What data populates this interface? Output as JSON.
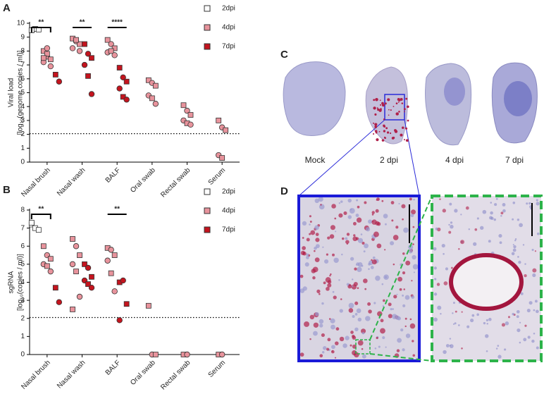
{
  "panel_labels": [
    "A",
    "B",
    "C",
    "D"
  ],
  "images": {
    "labels": [
      "Mock",
      "2 dpi",
      "4 dpi",
      "7 dpi"
    ]
  },
  "chart_data": [
    {
      "type": "dot",
      "categories": [
        "Nasal brush",
        "Nasal wash",
        "BALF",
        "Oral swab",
        "Rectal swab",
        "Serum"
      ],
      "ylabel": [
        "Viral load",
        "[log₁₀(genome copies / ml)]"
      ],
      "ylim": [
        0,
        10
      ],
      "yticks": [
        0,
        1,
        2,
        3,
        4,
        5,
        6,
        7,
        8,
        9,
        10
      ],
      "limit": 2.05,
      "legend": "upper right",
      "significance": [
        "**",
        "**",
        "****",
        null,
        null,
        null
      ],
      "series": [
        {
          "name": "2dpi",
          "color": "#ffffff",
          "values": [
            [
              9.5,
              9.6,
              9.55,
              9.5
            ],
            [],
            [],
            [],
            [],
            []
          ]
        },
        {
          "name": "4dpi",
          "color": "#e8939c",
          "values": [
            [
              8.0,
              7.6,
              7.4,
              7.2,
              7.8,
              6.9,
              7.5,
              8.2
            ],
            [
              8.9,
              8.7,
              8.5,
              8.2,
              8.8,
              8.0
            ],
            [
              8.8,
              8.5,
              8.2,
              7.9,
              8.0,
              7.7
            ],
            [
              5.9,
              5.7,
              5.5,
              4.8,
              4.6,
              4.2
            ],
            [
              4.1,
              3.7,
              3.4,
              3.0,
              2.8,
              2.7
            ],
            [
              3.0,
              2.5,
              2.3,
              0.5,
              0.3
            ]
          ]
        },
        {
          "name": "7dpi",
          "color": "#c4141e",
          "values": [
            [
              6.3,
              5.8
            ],
            [
              8.5,
              7.8,
              7.5,
              7.0,
              6.2,
              4.9
            ],
            [
              6.8,
              6.1,
              5.8,
              5.3,
              4.7,
              4.5
            ],
            [],
            [],
            []
          ]
        }
      ]
    },
    {
      "type": "dot",
      "categories": [
        "Nasal brush",
        "Nasal wash",
        "BALF",
        "Oral swab",
        "Rectal swab",
        "Serum"
      ],
      "ylabel": [
        "sgRNA",
        "[log₁₀(copies / ml)]"
      ],
      "ylim": [
        0,
        8
      ],
      "yticks": [
        0,
        1,
        2,
        3,
        4,
        5,
        6,
        7,
        8
      ],
      "limit": 2.05,
      "legend": "upper right",
      "significance": [
        "**",
        null,
        "**",
        null,
        null,
        null
      ],
      "series": [
        {
          "name": "2dpi",
          "color": "#ffffff",
          "values": [
            [
              7.2,
              7.0,
              6.9,
              7.3
            ],
            [],
            [],
            [],
            [],
            []
          ]
        },
        {
          "name": "4dpi",
          "color": "#e8939c",
          "values": [
            [
              6.0,
              5.5,
              5.3,
              5.0,
              4.9,
              4.6
            ],
            [
              6.4,
              6.0,
              5.5,
              5.0,
              4.6,
              3.2,
              2.5
            ],
            [
              5.9,
              5.8,
              5.5,
              5.2,
              4.5,
              3.5
            ],
            [
              2.7,
              0,
              0
            ],
            [
              0,
              0
            ],
            [
              0,
              0
            ]
          ]
        },
        {
          "name": "7dpi",
          "color": "#c4141e",
          "values": [
            [
              3.7,
              2.9
            ],
            [
              5.0,
              4.8,
              4.3,
              4.1,
              3.9,
              3.7
            ],
            [
              4.0,
              4.1,
              2.8,
              1.9
            ],
            [],
            [],
            []
          ]
        }
      ]
    }
  ]
}
